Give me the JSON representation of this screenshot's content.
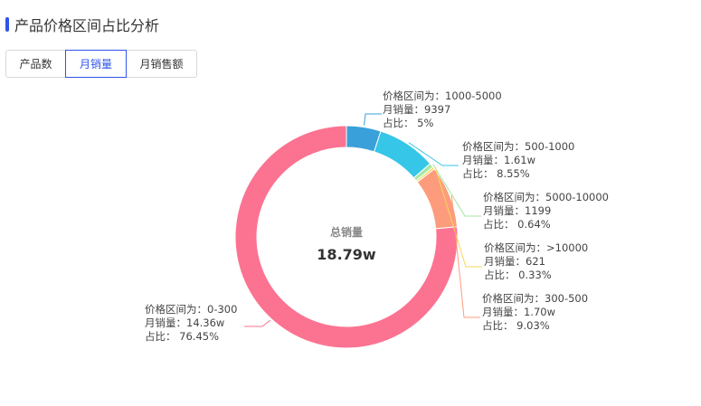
{
  "header": {
    "title": "产品价格区间占比分析"
  },
  "tabs": [
    {
      "label": "产品数",
      "active": false
    },
    {
      "label": "月销量",
      "active": true
    },
    {
      "label": "月销售额",
      "active": false
    }
  ],
  "chart_data": {
    "type": "pie",
    "center": {
      "label": "总销量",
      "value": "18.79w"
    },
    "slices": [
      {
        "range": "1000-5000",
        "value_text": "9397",
        "value": 9397,
        "percent": 5,
        "percent_text": "5%",
        "color": "#3aa0da"
      },
      {
        "range": "500-1000",
        "value_text": "1.61w",
        "value": 16100,
        "percent": 8.55,
        "percent_text": "8.55%",
        "color": "#35c6e8"
      },
      {
        "range": "5000-10000",
        "value_text": "1199",
        "value": 1199,
        "percent": 0.64,
        "percent_text": "0.64%",
        "color": "#a8e6a3"
      },
      {
        "range": ">10000",
        "value_text": "621",
        "value": 621,
        "percent": 0.33,
        "percent_text": "0.33%",
        "color": "#f6d75a"
      },
      {
        "range": "300-500",
        "value_text": "1.70w",
        "value": 17000,
        "percent": 9.03,
        "percent_text": "9.03%",
        "color": "#fd9c7c"
      },
      {
        "range": "0-300",
        "value_text": "14.36w",
        "value": 143600,
        "percent": 76.45,
        "percent_text": "76.45%",
        "color": "#fb7391"
      }
    ],
    "label_prefixes": {
      "range": "价格区间为：",
      "value": "月销量：",
      "percent": "占比： "
    }
  }
}
